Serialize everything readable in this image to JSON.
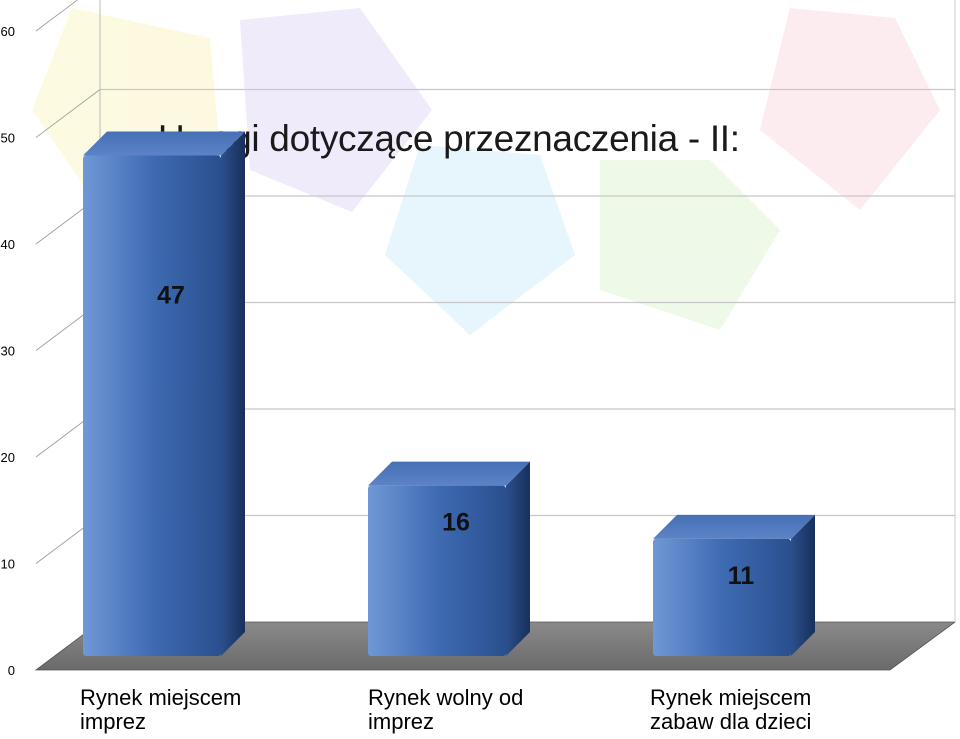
{
  "chart_data": {
    "type": "bar",
    "title": "Uwagi dotyczące przeznaczenia - II:",
    "categories": [
      "Rynek miejscem imprez",
      "Rynek wolny od imprez",
      "Rynek miejscem zabaw dla dzieci"
    ],
    "category_lines": [
      [
        "Rynek miejscem",
        "imprez"
      ],
      [
        "Rynek wolny od",
        "imprez"
      ],
      [
        "Rynek miejscem",
        "zabaw dla dzieci"
      ]
    ],
    "values": [
      47,
      16,
      11
    ],
    "value_labels": [
      "47",
      "16",
      "11"
    ],
    "ylim": [
      0,
      60
    ],
    "yticks": [
      0,
      10,
      20,
      30,
      40,
      50,
      60
    ],
    "ytick_labels": [
      "0",
      "10",
      "20",
      "30",
      "40",
      "50",
      "60"
    ],
    "xlabel": "",
    "ylabel": "",
    "grid": true,
    "style": "3d",
    "colors": {
      "bar_front": "#3f6bb3",
      "bar_top": "#5a80c4",
      "bar_side": "#24447c",
      "floor": "#7f7f7f"
    }
  }
}
